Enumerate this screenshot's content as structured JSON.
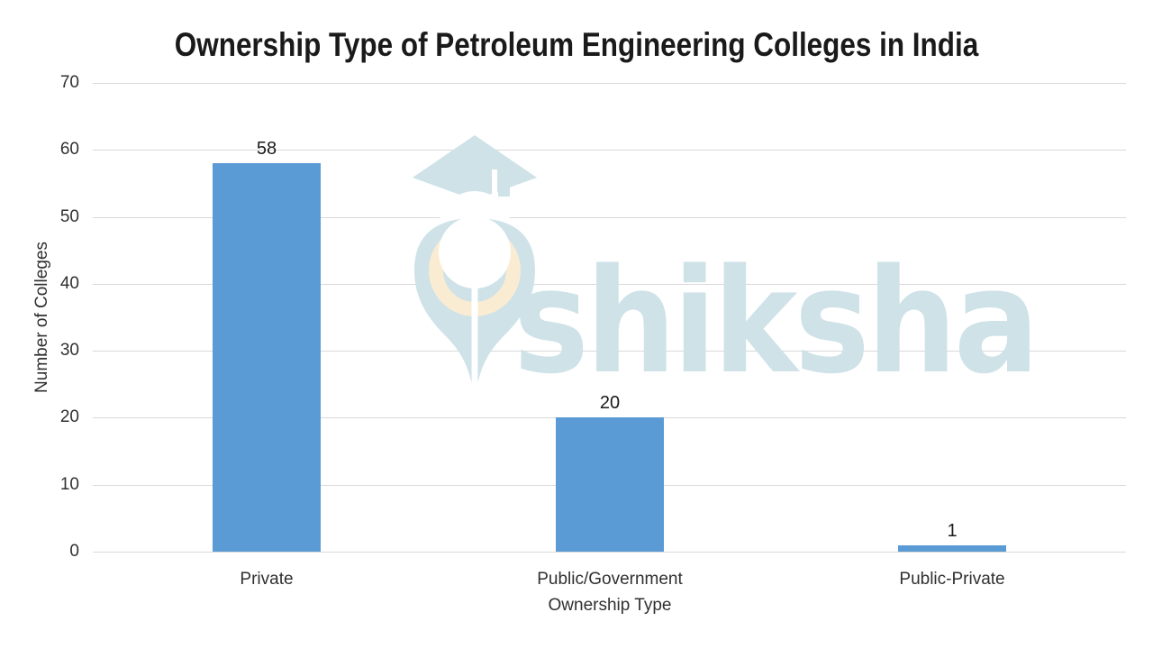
{
  "page": {
    "background": "#FFFFFF"
  },
  "watermark": {
    "brand": "shiksha",
    "mark_color": "#CEE2E8",
    "accent_color": "#FAECD3"
  },
  "chart_data": {
    "type": "bar",
    "title": "Ownership Type of Petroleum Engineering Colleges in India",
    "xlabel": "Ownership Type",
    "ylabel": "Number of Colleges",
    "categories": [
      "Private",
      "Public/Government",
      "Public-Private"
    ],
    "values": [
      58,
      20,
      1
    ],
    "data_labels": [
      "58",
      "20",
      "1"
    ],
    "ylim": [
      0,
      70
    ],
    "yticks": [
      0,
      10,
      20,
      30,
      40,
      50,
      60,
      70
    ],
    "grid": true,
    "legend_position": "none",
    "bar_color": "#5B9BD5",
    "gridline_color": "#D9D9D9",
    "text_color": "#303030",
    "title_color": "#1A1A1A"
  }
}
